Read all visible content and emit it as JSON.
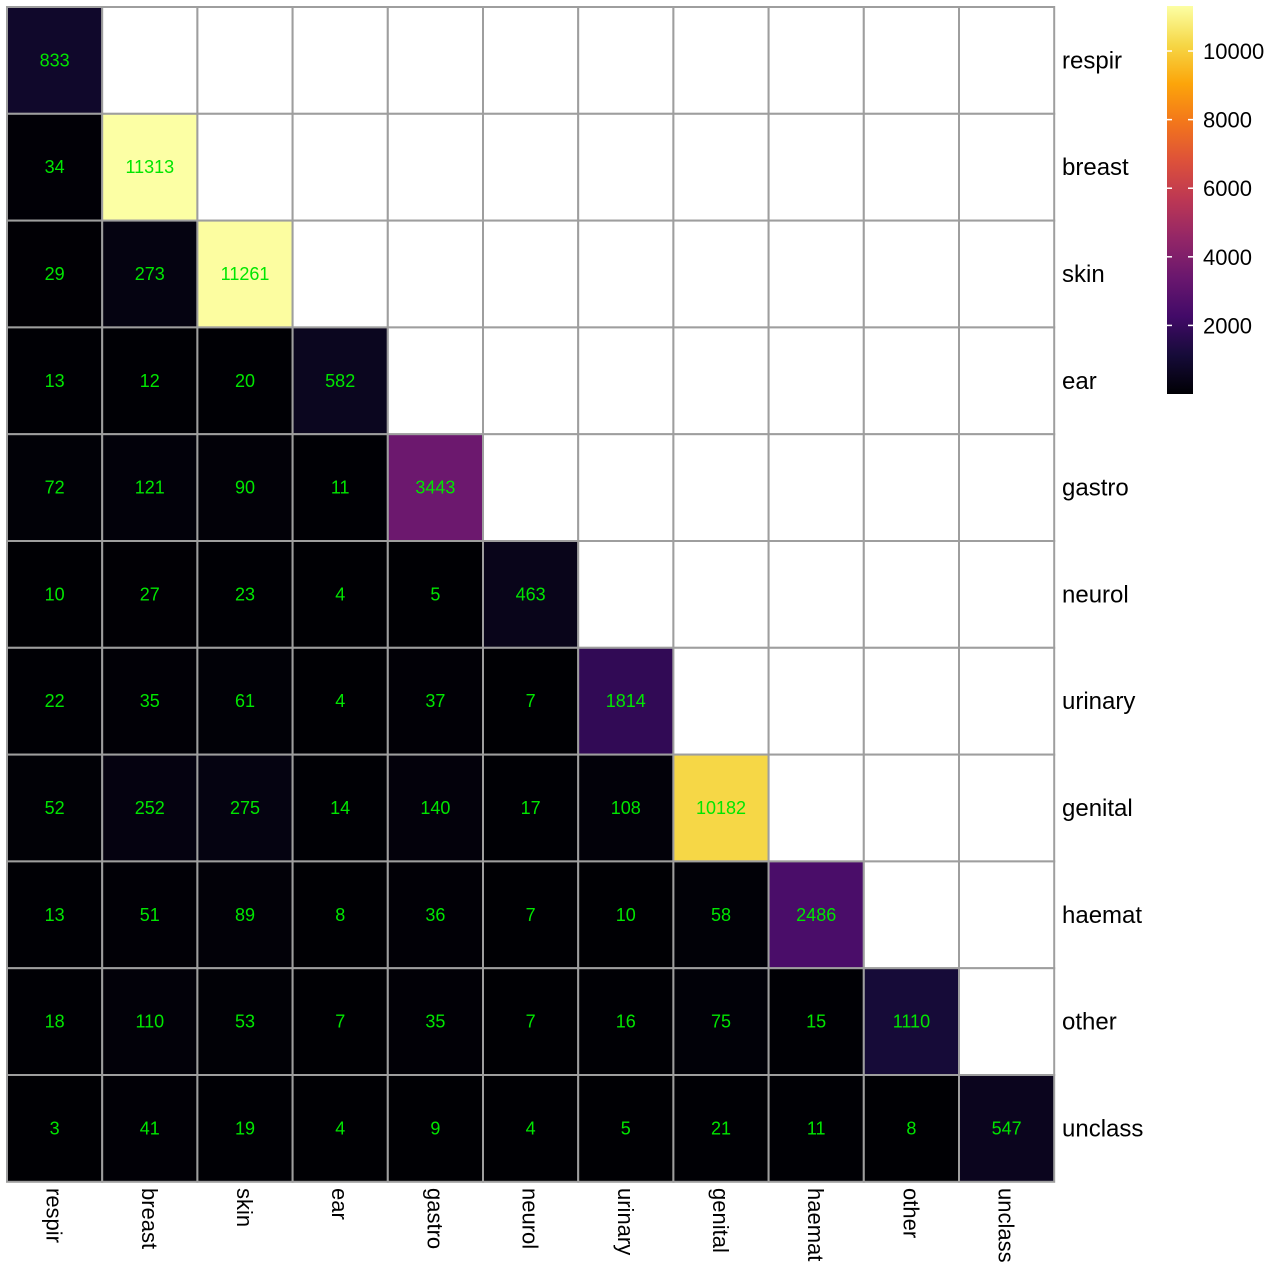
{
  "chart_data": {
    "type": "heatmap",
    "title": "",
    "xlabel": "",
    "ylabel": "",
    "categories": [
      "respir",
      "breast",
      "skin",
      "ear",
      "gastro",
      "neurol",
      "urinary",
      "genital",
      "haemat",
      "other",
      "unclass"
    ],
    "lower_triangle": true,
    "values": [
      [
        833
      ],
      [
        34,
        11313
      ],
      [
        29,
        273,
        11261
      ],
      [
        13,
        12,
        20,
        582
      ],
      [
        72,
        121,
        90,
        11,
        3443
      ],
      [
        10,
        27,
        23,
        4,
        5,
        463
      ],
      [
        22,
        35,
        61,
        4,
        37,
        7,
        1814
      ],
      [
        52,
        252,
        275,
        14,
        140,
        17,
        108,
        10182
      ],
      [
        13,
        51,
        89,
        8,
        36,
        7,
        10,
        58,
        2486
      ],
      [
        18,
        110,
        53,
        7,
        35,
        7,
        16,
        75,
        15,
        1110
      ],
      [
        3,
        41,
        19,
        4,
        9,
        4,
        5,
        21,
        11,
        8,
        547
      ]
    ],
    "colorscale": "inferno",
    "color_range": [
      0,
      11313
    ],
    "colorbar": {
      "ticks": [
        2000,
        4000,
        6000,
        8000,
        10000
      ],
      "position": "top-right"
    },
    "cell_label_color": "#00e600",
    "grid_color": "#9e9e9e"
  }
}
